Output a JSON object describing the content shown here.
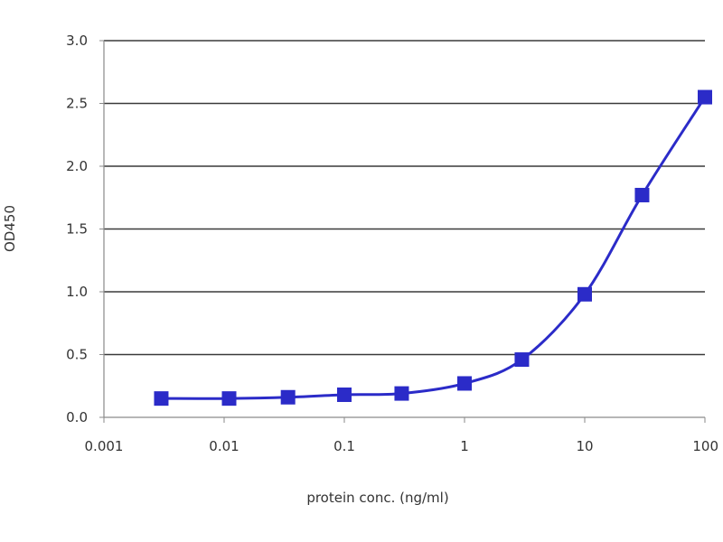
{
  "chart_data": {
    "type": "line",
    "title": "",
    "xlabel": "protein conc. (ng/ml)",
    "ylabel": "OD450",
    "x_scale": "log",
    "xlim": [
      0.001,
      100
    ],
    "ylim": [
      0,
      3.0
    ],
    "x_ticks": [
      0.001,
      0.01,
      0.1,
      1,
      10,
      100
    ],
    "x_tick_labels": [
      "0.001",
      "0.01",
      "0.1",
      "1",
      "10",
      "100"
    ],
    "y_ticks": [
      0,
      0.5,
      1.0,
      1.5,
      2.0,
      2.5,
      3.0
    ],
    "y_tick_labels": [
      "0.0",
      "0.5",
      "1.0",
      "1.5",
      "2.0",
      "2.5",
      "3.0"
    ],
    "grid": "horizontal",
    "legend": "none",
    "series": [
      {
        "x": [
          0.003,
          0.011,
          0.034,
          0.1,
          0.3,
          1.0,
          3.0,
          10,
          30,
          100
        ],
        "y": [
          0.15,
          0.15,
          0.16,
          0.18,
          0.19,
          0.27,
          0.46,
          0.98,
          1.77,
          2.55
        ],
        "color": "#2b2bc8",
        "marker": "square"
      }
    ]
  }
}
